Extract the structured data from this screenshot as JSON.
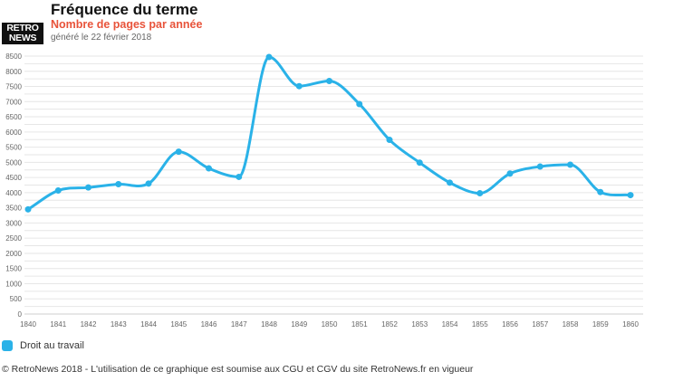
{
  "header": {
    "logo_line1": "RETRO",
    "logo_line2": "NEWS",
    "title": "Fréquence du terme",
    "subtitle": "Nombre de pages par année",
    "generated": "généré le 22 février 2018"
  },
  "legend": {
    "label": "Droit au travail"
  },
  "footer": {
    "text": "© RetroNews 2018 - L'utilisation de ce graphique est soumise aux CGU et CGV du site RetroNews.fr en vigueur"
  },
  "colors": {
    "series": "#2ab2e8",
    "grid": "#e6e6e6",
    "accent": "#e8533a"
  },
  "chart_data": {
    "type": "line",
    "title": "Fréquence du terme",
    "subtitle": "Nombre de pages par année",
    "categories": [
      "1840",
      "1841",
      "1842",
      "1843",
      "1844",
      "1845",
      "1846",
      "1847",
      "1848",
      "1849",
      "1850",
      "1851",
      "1852",
      "1853",
      "1854",
      "1855",
      "1856",
      "1857",
      "1858",
      "1859",
      "1860"
    ],
    "series": [
      {
        "name": "Droit au travail",
        "values": [
          3450,
          4070,
          4170,
          4280,
          4300,
          5350,
          4800,
          4520,
          8470,
          7510,
          7680,
          6920,
          5740,
          4990,
          4330,
          3980,
          4630,
          4860,
          4920,
          4020,
          3920
        ]
      }
    ],
    "ylim": [
      0,
      8500
    ],
    "yticks": [
      0,
      250,
      500,
      750,
      1000,
      1250,
      1500,
      1750,
      2000,
      2250,
      2500,
      2750,
      3000,
      3250,
      3500,
      3750,
      4000,
      4250,
      4500,
      4750,
      5000,
      5250,
      5500,
      5750,
      6000,
      6250,
      6500,
      6750,
      7000,
      7250,
      7500,
      7750,
      8000,
      8250,
      8500
    ],
    "ytick_labels": [
      "0",
      "500",
      "1000",
      "1500",
      "2000",
      "2500",
      "3000",
      "3500",
      "4000",
      "4500",
      "5000",
      "5500",
      "6000",
      "6500",
      "7000",
      "7500",
      "8000",
      "8500"
    ],
    "grid": true,
    "legend_position": "bottom-left"
  }
}
